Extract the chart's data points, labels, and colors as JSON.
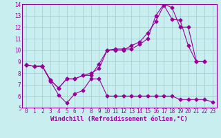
{
  "xlabel": "Windchill (Refroidissement éolien,°C)",
  "bg_color": "#c8eef0",
  "grid_color": "#a0c8d0",
  "line_color": "#990099",
  "xlim": [
    -0.5,
    23.5
  ],
  "ylim": [
    5,
    14
  ],
  "xticks": [
    0,
    1,
    2,
    3,
    4,
    5,
    6,
    7,
    8,
    9,
    10,
    11,
    12,
    13,
    14,
    15,
    16,
    17,
    18,
    19,
    20,
    21,
    22,
    23
  ],
  "yticks": [
    5,
    6,
    7,
    8,
    9,
    10,
    11,
    12,
    13,
    14
  ],
  "line1_x": [
    0,
    1,
    2,
    3,
    4,
    5,
    6,
    7,
    8,
    9,
    10,
    11,
    12,
    13,
    14,
    15,
    16,
    17,
    18,
    19,
    20,
    21,
    22,
    23
  ],
  "line1_y": [
    8.7,
    8.6,
    8.6,
    7.3,
    6.1,
    5.4,
    6.2,
    6.5,
    7.5,
    7.5,
    6.0,
    6.0,
    6.0,
    6.0,
    6.0,
    6.0,
    6.0,
    6.0,
    6.0,
    5.7,
    5.7,
    5.7,
    5.7,
    5.5
  ],
  "line2_x": [
    0,
    1,
    2,
    3,
    4,
    5,
    6,
    7,
    8,
    9,
    10,
    11,
    12,
    13,
    14,
    15,
    16,
    17,
    18,
    19,
    20,
    21,
    22
  ],
  "line2_y": [
    8.7,
    8.6,
    8.6,
    7.4,
    6.7,
    7.5,
    7.5,
    7.8,
    8.0,
    8.4,
    10.0,
    10.1,
    10.1,
    10.1,
    10.5,
    11.0,
    13.0,
    14.0,
    13.7,
    12.0,
    12.0,
    9.0,
    9.0
  ],
  "line3_x": [
    0,
    1,
    2,
    3,
    4,
    5,
    6,
    7,
    8,
    9,
    10,
    11,
    12,
    13,
    14,
    15,
    16,
    17,
    18,
    19,
    20,
    21,
    22
  ],
  "line3_y": [
    8.7,
    8.6,
    8.6,
    7.4,
    6.7,
    7.5,
    7.5,
    7.8,
    7.8,
    8.8,
    10.0,
    10.0,
    10.0,
    10.4,
    10.7,
    11.5,
    12.5,
    13.9,
    12.7,
    12.6,
    10.4,
    9.0,
    9.0
  ],
  "marker": "D",
  "markersize": 2.5,
  "linewidth": 0.8,
  "xlabel_fontsize": 6.5,
  "tick_fontsize": 5.5
}
